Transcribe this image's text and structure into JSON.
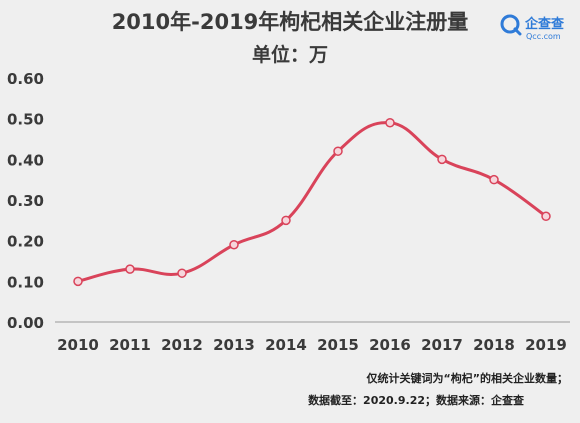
{
  "chart_data": {
    "type": "line",
    "title": "2010年-2019年枸杞相关企业注册量",
    "subtitle": "单位：万",
    "categories": [
      "2010",
      "2011",
      "2012",
      "2013",
      "2014",
      "2015",
      "2016",
      "2017",
      "2018",
      "2019"
    ],
    "series": [
      {
        "values": [
          0.1,
          0.13,
          0.12,
          0.19,
          0.25,
          0.42,
          0.49,
          0.4,
          0.35,
          0.26
        ]
      }
    ],
    "y_ticks": [
      "0.00",
      "0.10",
      "0.20",
      "0.30",
      "0.40",
      "0.50",
      "0.60"
    ],
    "ylim": [
      0,
      0.6
    ],
    "grid": false,
    "colors": {
      "line": "#d9435a",
      "marker_fill": "#f6d6dc",
      "axis": "#9a9a9a",
      "background": "#efefef"
    }
  },
  "logo": {
    "name": "企查查",
    "domain": "Qcc.com",
    "icon": "qcc-logo-icon",
    "color": "#2f7bd8"
  },
  "notes": [
    "仅统计关键词为“枸杞”的相关企业数量；",
    "数据截至：2020.9.22；数据来源：企查查"
  ]
}
